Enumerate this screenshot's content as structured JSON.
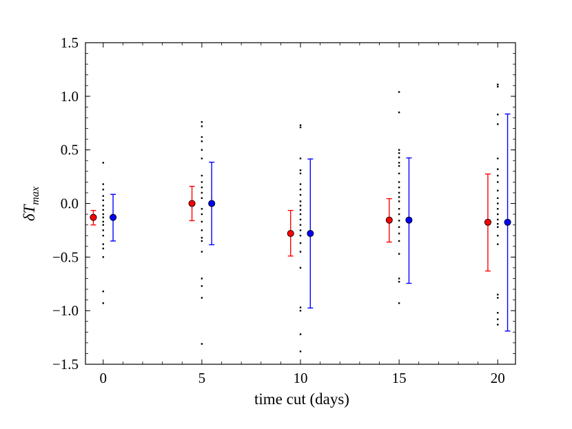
{
  "chart_data": {
    "type": "scatter",
    "title": "",
    "xlabel": "time cut (days)",
    "ylabel": "δT",
    "ylabel_subscript": "max",
    "xlim": [
      -0.9,
      20.9
    ],
    "ylim": [
      -1.5,
      1.5
    ],
    "xticks": [
      0,
      5,
      10,
      15,
      20
    ],
    "xtick_labels": [
      "0",
      "5",
      "10",
      "15",
      "20"
    ],
    "yticks": [
      -1.5,
      -1.0,
      -0.5,
      0.0,
      0.5,
      1.0,
      1.5
    ],
    "ytick_labels": [
      "−1.5",
      "−1.0",
      "−0.5",
      "0.0",
      "0.5",
      "1.0",
      "1.5"
    ],
    "grid": false,
    "series": [
      {
        "name": "red",
        "color": "#ff0000",
        "error_color": "#ff0000",
        "x": [
          -0.5,
          4.5,
          9.5,
          14.5,
          19.5
        ],
        "y": [
          -0.13,
          0.0,
          -0.28,
          -0.155,
          -0.175
        ],
        "yerr_low": [
          -0.2,
          -0.16,
          -0.49,
          -0.36,
          -0.63
        ],
        "yerr_high": [
          -0.065,
          0.16,
          -0.065,
          0.045,
          0.275
        ]
      },
      {
        "name": "blue",
        "color": "#0000ff",
        "error_color": "#0000ff",
        "x": [
          0.5,
          5.5,
          10.5,
          15.5,
          20.5
        ],
        "y": [
          -0.13,
          0.0,
          -0.28,
          -0.155,
          -0.175
        ],
        "yerr_low": [
          -0.35,
          -0.385,
          -0.975,
          -0.745,
          -1.19
        ],
        "yerr_high": [
          0.085,
          0.385,
          0.415,
          0.425,
          0.835
        ]
      }
    ],
    "scatter_points": [
      {
        "x": 0,
        "y": [
          0.38,
          0.18,
          0.13,
          0.07,
          0.03,
          -0.02,
          -0.06,
          -0.1,
          -0.13,
          -0.17,
          -0.2,
          -0.25,
          -0.3,
          -0.38,
          -0.42,
          -0.5,
          -0.82,
          -0.93
        ]
      },
      {
        "x": 5,
        "y": [
          0.76,
          0.72,
          0.62,
          0.58,
          0.5,
          0.42,
          0.26,
          0.2,
          0.15,
          0.1,
          0.05,
          -0.05,
          -0.1,
          -0.17,
          -0.25,
          -0.32,
          -0.35,
          -0.45,
          -0.7,
          -0.77,
          -0.88,
          -1.31
        ]
      },
      {
        "x": 10,
        "y": [
          0.73,
          0.71,
          0.42,
          0.31,
          0.28,
          0.18,
          0.13,
          0.08,
          0.02,
          -0.02,
          -0.06,
          -0.1,
          -0.15,
          -0.2,
          -0.25,
          -0.3,
          -0.37,
          -0.45,
          -0.6,
          -0.97,
          -1.0,
          -1.22,
          -1.38
        ]
      },
      {
        "x": 15,
        "y": [
          1.04,
          0.85,
          0.5,
          0.47,
          0.43,
          0.38,
          0.35,
          0.28,
          0.2,
          0.15,
          0.1,
          0.06,
          0.02,
          -0.05,
          -0.1,
          -0.16,
          -0.22,
          -0.28,
          -0.35,
          -0.47,
          -0.7,
          -0.73,
          -0.93
        ]
      },
      {
        "x": 20,
        "y": [
          1.11,
          1.09,
          0.83,
          0.74,
          0.42,
          0.32,
          0.26,
          0.2,
          0.12,
          0.05,
          0.0,
          -0.05,
          -0.1,
          -0.15,
          -0.19,
          -0.22,
          -0.3,
          -0.38,
          -0.85,
          -0.88,
          -1.02,
          -1.08,
          -1.13
        ]
      }
    ]
  }
}
